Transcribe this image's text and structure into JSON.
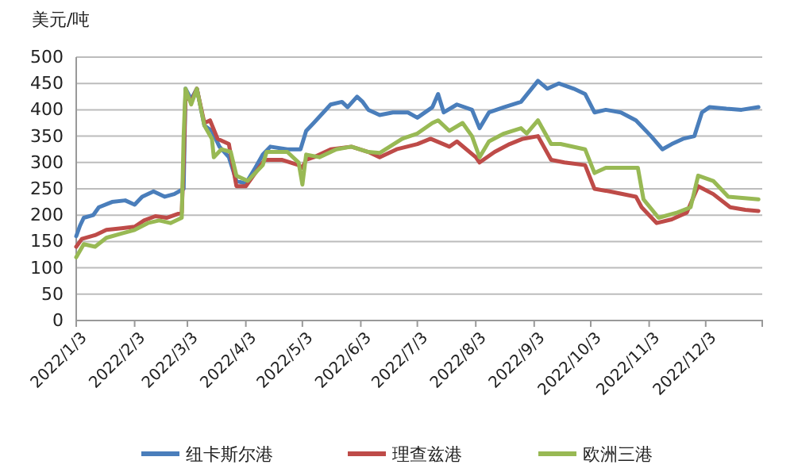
{
  "chart_data": {
    "type": "line",
    "ylabel": "美元/吨",
    "ylim": [
      0,
      500
    ],
    "yticks": [
      0,
      50,
      100,
      150,
      200,
      250,
      300,
      350,
      400,
      450,
      500
    ],
    "xlim": [
      "2022-01-03",
      "2023-01-02"
    ],
    "xticks": [
      {
        "value": "2022-01-03",
        "label": "2022/1/3"
      },
      {
        "value": "2022-02-03",
        "label": "2022/2/3"
      },
      {
        "value": "2022-03-03",
        "label": "2022/3/3"
      },
      {
        "value": "2022-04-03",
        "label": "2022/4/3"
      },
      {
        "value": "2022-05-03",
        "label": "2022/5/3"
      },
      {
        "value": "2022-06-03",
        "label": "2022/6/3"
      },
      {
        "value": "2022-07-03",
        "label": "2022/7/3"
      },
      {
        "value": "2022-08-03",
        "label": "2022/8/3"
      },
      {
        "value": "2022-09-03",
        "label": "2022/9/3"
      },
      {
        "value": "2022-10-03",
        "label": "2022/10/3"
      },
      {
        "value": "2022-11-03",
        "label": "2022/11/3"
      },
      {
        "value": "2022-12-03",
        "label": "2022/12/3"
      }
    ],
    "grid": "y",
    "legend": "bottom",
    "marker": "none",
    "line_style": "solid",
    "series": [
      {
        "name": "纽卡斯尔港",
        "color": "#4a7ebb",
        "x": [
          "2022-01-03",
          "2022-01-05",
          "2022-01-07",
          "2022-01-12",
          "2022-01-15",
          "2022-01-22",
          "2022-01-29",
          "2022-02-03",
          "2022-02-07",
          "2022-02-13",
          "2022-02-19",
          "2022-02-24",
          "2022-03-01",
          "2022-03-02",
          "2022-03-05",
          "2022-03-08",
          "2022-03-12",
          "2022-03-16",
          "2022-03-20",
          "2022-03-25",
          "2022-03-29",
          "2022-04-03",
          "2022-04-08",
          "2022-04-12",
          "2022-04-16",
          "2022-04-25",
          "2022-05-02",
          "2022-05-05",
          "2022-05-09",
          "2022-05-18",
          "2022-05-24",
          "2022-05-27",
          "2022-06-01",
          "2022-06-04",
          "2022-06-07",
          "2022-06-13",
          "2022-06-20",
          "2022-06-28",
          "2022-07-03",
          "2022-07-11",
          "2022-07-14",
          "2022-07-17",
          "2022-07-24",
          "2022-08-01",
          "2022-08-05",
          "2022-08-10",
          "2022-08-18",
          "2022-08-27",
          "2022-09-05",
          "2022-09-10",
          "2022-09-16",
          "2022-09-24",
          "2022-09-30",
          "2022-10-05",
          "2022-10-11",
          "2022-10-19",
          "2022-10-27",
          "2022-11-04",
          "2022-11-10",
          "2022-11-15",
          "2022-11-21",
          "2022-11-27",
          "2022-12-01",
          "2022-12-05",
          "2022-12-14",
          "2022-12-22",
          "2022-12-31"
        ],
        "values": [
          160,
          180,
          195,
          200,
          215,
          225,
          228,
          220,
          235,
          245,
          235,
          240,
          250,
          440,
          420,
          440,
          370,
          360,
          330,
          310,
          265,
          260,
          290,
          315,
          330,
          325,
          325,
          360,
          375,
          410,
          415,
          405,
          425,
          415,
          400,
          390,
          395,
          395,
          385,
          405,
          430,
          395,
          410,
          400,
          365,
          395,
          405,
          415,
          455,
          440,
          450,
          440,
          430,
          395,
          400,
          395,
          380,
          350,
          325,
          335,
          345,
          350,
          395,
          405,
          402,
          400,
          405
        ]
      },
      {
        "name": "理查兹港",
        "color": "#be4b48",
        "x": [
          "2022-01-03",
          "2022-01-06",
          "2022-01-13",
          "2022-01-19",
          "2022-01-27",
          "2022-02-03",
          "2022-02-08",
          "2022-02-14",
          "2022-02-20",
          "2022-02-28",
          "2022-03-01",
          "2022-03-02",
          "2022-03-05",
          "2022-03-08",
          "2022-03-12",
          "2022-03-15",
          "2022-03-19",
          "2022-03-25",
          "2022-03-29",
          "2022-04-03",
          "2022-04-08",
          "2022-04-13",
          "2022-04-22",
          "2022-05-01",
          "2022-05-03",
          "2022-05-05",
          "2022-05-09",
          "2022-05-18",
          "2022-05-29",
          "2022-06-07",
          "2022-06-13",
          "2022-06-22",
          "2022-07-03",
          "2022-07-10",
          "2022-07-20",
          "2022-07-24",
          "2022-08-03",
          "2022-08-05",
          "2022-08-13",
          "2022-08-21",
          "2022-08-28",
          "2022-09-05",
          "2022-09-12",
          "2022-09-19",
          "2022-09-30",
          "2022-10-05",
          "2022-10-13",
          "2022-10-27",
          "2022-10-30",
          "2022-11-07",
          "2022-11-15",
          "2022-11-23",
          "2022-11-29",
          "2022-12-07",
          "2022-12-16",
          "2022-12-24",
          "2022-12-31"
        ],
        "values": [
          140,
          155,
          162,
          172,
          175,
          178,
          190,
          198,
          195,
          205,
          300,
          430,
          415,
          440,
          375,
          380,
          345,
          335,
          255,
          255,
          280,
          305,
          305,
          295,
          290,
          305,
          310,
          325,
          330,
          320,
          310,
          325,
          335,
          345,
          330,
          340,
          310,
          300,
          320,
          335,
          345,
          350,
          305,
          300,
          295,
          250,
          245,
          235,
          215,
          185,
          192,
          205,
          255,
          240,
          215,
          210,
          208
        ]
      },
      {
        "name": "欧洲三港",
        "color": "#98b954",
        "x": [
          "2022-01-03",
          "2022-01-07",
          "2022-01-13",
          "2022-01-19",
          "2022-01-27",
          "2022-02-03",
          "2022-02-10",
          "2022-02-16",
          "2022-02-22",
          "2022-02-28",
          "2022-03-01",
          "2022-03-02",
          "2022-03-05",
          "2022-03-08",
          "2022-03-12",
          "2022-03-16",
          "2022-03-17",
          "2022-03-21",
          "2022-03-26",
          "2022-03-29",
          "2022-04-04",
          "2022-04-12",
          "2022-04-14",
          "2022-04-25",
          "2022-05-01",
          "2022-05-03",
          "2022-05-05",
          "2022-05-12",
          "2022-05-21",
          "2022-05-29",
          "2022-06-07",
          "2022-06-13",
          "2022-06-25",
          "2022-07-03",
          "2022-07-11",
          "2022-07-14",
          "2022-07-20",
          "2022-07-27",
          "2022-08-01",
          "2022-08-05",
          "2022-08-10",
          "2022-08-18",
          "2022-08-27",
          "2022-08-30",
          "2022-09-05",
          "2022-09-12",
          "2022-09-17",
          "2022-09-30",
          "2022-10-05",
          "2022-10-11",
          "2022-10-28",
          "2022-10-31",
          "2022-11-08",
          "2022-11-18",
          "2022-11-25",
          "2022-11-29",
          "2022-12-07",
          "2022-12-15",
          "2022-12-31"
        ],
        "values": [
          120,
          145,
          140,
          157,
          165,
          172,
          185,
          190,
          185,
          195,
          350,
          440,
          410,
          440,
          370,
          345,
          310,
          325,
          320,
          275,
          265,
          295,
          320,
          320,
          300,
          258,
          315,
          310,
          325,
          330,
          320,
          318,
          345,
          355,
          375,
          380,
          360,
          375,
          350,
          310,
          340,
          355,
          365,
          355,
          380,
          335,
          335,
          325,
          280,
          290,
          290,
          230,
          195,
          205,
          215,
          275,
          265,
          235,
          230
        ]
      }
    ]
  }
}
